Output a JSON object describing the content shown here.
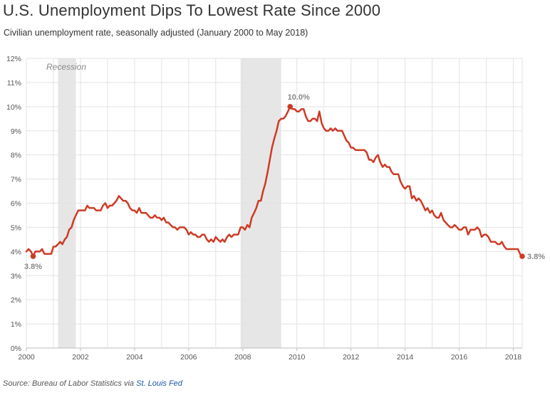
{
  "title": "U.S. Unemployment Dips To Lowest Rate Since 2000",
  "subtitle": "Civilian unemployment rate, seasonally adjusted (January 2000 to May 2018)",
  "source": {
    "prefix": "Source: Bureau of Labor Statistics via ",
    "link_text": "St. Louis Fed"
  },
  "colors": {
    "line": "#cc3b25",
    "recession": "#e6e6e6",
    "grid": "#e3e3e3",
    "axis_text": "#555555",
    "annotation": "#888888"
  },
  "chart_data": {
    "type": "line",
    "xlabel": "",
    "ylabel": "",
    "xlim": [
      2000.0,
      2018.33
    ],
    "ylim": [
      0,
      12
    ],
    "x_ticks": [
      2000,
      2002,
      2004,
      2006,
      2008,
      2010,
      2012,
      2014,
      2016,
      2018
    ],
    "x_tick_labels": [
      "2000",
      "2002",
      "2004",
      "2006",
      "2008",
      "2010",
      "2012",
      "2014",
      "2016",
      "2018"
    ],
    "y_ticks": [
      0,
      1,
      2,
      3,
      4,
      5,
      6,
      7,
      8,
      9,
      10,
      11,
      12
    ],
    "y_tick_labels": [
      "0%",
      "1%",
      "2%",
      "3%",
      "4%",
      "5%",
      "6%",
      "7%",
      "8%",
      "9%",
      "10%",
      "11%",
      "12%"
    ],
    "grid": true,
    "recessions": [
      {
        "start": 2001.17,
        "end": 2001.83
      },
      {
        "start": 2007.92,
        "end": 2009.42
      }
    ],
    "recession_label": "Recession",
    "series": [
      {
        "points": [
          [
            2000.0,
            4.0
          ],
          [
            2000.08,
            4.1
          ],
          [
            2000.17,
            4.0
          ],
          [
            2000.25,
            3.8
          ],
          [
            2000.33,
            4.0
          ],
          [
            2000.42,
            4.0
          ],
          [
            2000.5,
            4.0
          ],
          [
            2000.58,
            4.1
          ],
          [
            2000.67,
            3.9
          ],
          [
            2000.75,
            3.9
          ],
          [
            2000.83,
            3.9
          ],
          [
            2000.92,
            3.9
          ],
          [
            2001.0,
            4.2
          ],
          [
            2001.08,
            4.2
          ],
          [
            2001.17,
            4.3
          ],
          [
            2001.25,
            4.4
          ],
          [
            2001.33,
            4.3
          ],
          [
            2001.42,
            4.5
          ],
          [
            2001.5,
            4.6
          ],
          [
            2001.58,
            4.9
          ],
          [
            2001.67,
            5.0
          ],
          [
            2001.75,
            5.3
          ],
          [
            2001.83,
            5.5
          ],
          [
            2001.92,
            5.7
          ],
          [
            2002.0,
            5.7
          ],
          [
            2002.08,
            5.7
          ],
          [
            2002.17,
            5.7
          ],
          [
            2002.25,
            5.9
          ],
          [
            2002.33,
            5.8
          ],
          [
            2002.42,
            5.8
          ],
          [
            2002.5,
            5.8
          ],
          [
            2002.58,
            5.7
          ],
          [
            2002.67,
            5.7
          ],
          [
            2002.75,
            5.7
          ],
          [
            2002.83,
            5.9
          ],
          [
            2002.92,
            6.0
          ],
          [
            2003.0,
            5.8
          ],
          [
            2003.08,
            5.9
          ],
          [
            2003.17,
            5.9
          ],
          [
            2003.25,
            6.0
          ],
          [
            2003.33,
            6.1
          ],
          [
            2003.42,
            6.3
          ],
          [
            2003.5,
            6.2
          ],
          [
            2003.58,
            6.1
          ],
          [
            2003.67,
            6.1
          ],
          [
            2003.75,
            6.0
          ],
          [
            2003.83,
            5.8
          ],
          [
            2003.92,
            5.7
          ],
          [
            2004.0,
            5.7
          ],
          [
            2004.08,
            5.6
          ],
          [
            2004.17,
            5.8
          ],
          [
            2004.25,
            5.6
          ],
          [
            2004.33,
            5.6
          ],
          [
            2004.42,
            5.6
          ],
          [
            2004.5,
            5.5
          ],
          [
            2004.58,
            5.4
          ],
          [
            2004.67,
            5.4
          ],
          [
            2004.75,
            5.5
          ],
          [
            2004.83,
            5.4
          ],
          [
            2004.92,
            5.4
          ],
          [
            2005.0,
            5.3
          ],
          [
            2005.08,
            5.4
          ],
          [
            2005.17,
            5.2
          ],
          [
            2005.25,
            5.2
          ],
          [
            2005.33,
            5.1
          ],
          [
            2005.42,
            5.0
          ],
          [
            2005.5,
            5.0
          ],
          [
            2005.58,
            4.9
          ],
          [
            2005.67,
            5.0
          ],
          [
            2005.75,
            5.0
          ],
          [
            2005.83,
            5.0
          ],
          [
            2005.92,
            4.9
          ],
          [
            2006.0,
            4.7
          ],
          [
            2006.08,
            4.8
          ],
          [
            2006.17,
            4.7
          ],
          [
            2006.25,
            4.7
          ],
          [
            2006.33,
            4.6
          ],
          [
            2006.42,
            4.6
          ],
          [
            2006.5,
            4.7
          ],
          [
            2006.58,
            4.7
          ],
          [
            2006.67,
            4.5
          ],
          [
            2006.75,
            4.4
          ],
          [
            2006.83,
            4.5
          ],
          [
            2006.92,
            4.4
          ],
          [
            2007.0,
            4.6
          ],
          [
            2007.08,
            4.5
          ],
          [
            2007.17,
            4.4
          ],
          [
            2007.25,
            4.5
          ],
          [
            2007.33,
            4.4
          ],
          [
            2007.42,
            4.6
          ],
          [
            2007.5,
            4.7
          ],
          [
            2007.58,
            4.6
          ],
          [
            2007.67,
            4.7
          ],
          [
            2007.75,
            4.7
          ],
          [
            2007.83,
            4.7
          ],
          [
            2007.92,
            5.0
          ],
          [
            2008.0,
            5.0
          ],
          [
            2008.08,
            4.9
          ],
          [
            2008.17,
            5.1
          ],
          [
            2008.25,
            5.0
          ],
          [
            2008.33,
            5.4
          ],
          [
            2008.42,
            5.6
          ],
          [
            2008.5,
            5.8
          ],
          [
            2008.58,
            6.1
          ],
          [
            2008.67,
            6.1
          ],
          [
            2008.75,
            6.5
          ],
          [
            2008.83,
            6.8
          ],
          [
            2008.92,
            7.3
          ],
          [
            2009.0,
            7.8
          ],
          [
            2009.08,
            8.3
          ],
          [
            2009.17,
            8.7
          ],
          [
            2009.25,
            9.0
          ],
          [
            2009.33,
            9.4
          ],
          [
            2009.42,
            9.5
          ],
          [
            2009.5,
            9.5
          ],
          [
            2009.58,
            9.6
          ],
          [
            2009.67,
            9.8
          ],
          [
            2009.75,
            10.0
          ],
          [
            2009.83,
            9.9
          ],
          [
            2009.92,
            9.9
          ],
          [
            2010.0,
            9.8
          ],
          [
            2010.08,
            9.8
          ],
          [
            2010.17,
            9.9
          ],
          [
            2010.25,
            9.9
          ],
          [
            2010.33,
            9.6
          ],
          [
            2010.42,
            9.4
          ],
          [
            2010.5,
            9.4
          ],
          [
            2010.58,
            9.5
          ],
          [
            2010.67,
            9.5
          ],
          [
            2010.75,
            9.4
          ],
          [
            2010.83,
            9.8
          ],
          [
            2010.92,
            9.3
          ],
          [
            2011.0,
            9.1
          ],
          [
            2011.08,
            9.0
          ],
          [
            2011.17,
            9.0
          ],
          [
            2011.25,
            9.1
          ],
          [
            2011.33,
            9.0
          ],
          [
            2011.42,
            9.1
          ],
          [
            2011.5,
            9.0
          ],
          [
            2011.58,
            9.0
          ],
          [
            2011.67,
            9.0
          ],
          [
            2011.75,
            8.8
          ],
          [
            2011.83,
            8.6
          ],
          [
            2011.92,
            8.5
          ],
          [
            2012.0,
            8.3
          ],
          [
            2012.08,
            8.3
          ],
          [
            2012.17,
            8.2
          ],
          [
            2012.25,
            8.2
          ],
          [
            2012.33,
            8.2
          ],
          [
            2012.42,
            8.2
          ],
          [
            2012.5,
            8.2
          ],
          [
            2012.58,
            8.1
          ],
          [
            2012.67,
            7.8
          ],
          [
            2012.75,
            7.8
          ],
          [
            2012.83,
            7.7
          ],
          [
            2012.92,
            7.9
          ],
          [
            2013.0,
            8.0
          ],
          [
            2013.08,
            7.7
          ],
          [
            2013.17,
            7.5
          ],
          [
            2013.25,
            7.6
          ],
          [
            2013.33,
            7.5
          ],
          [
            2013.42,
            7.5
          ],
          [
            2013.5,
            7.3
          ],
          [
            2013.58,
            7.2
          ],
          [
            2013.67,
            7.2
          ],
          [
            2013.75,
            7.2
          ],
          [
            2013.83,
            6.9
          ],
          [
            2013.92,
            6.7
          ],
          [
            2014.0,
            6.6
          ],
          [
            2014.08,
            6.7
          ],
          [
            2014.17,
            6.7
          ],
          [
            2014.25,
            6.2
          ],
          [
            2014.33,
            6.3
          ],
          [
            2014.42,
            6.1
          ],
          [
            2014.5,
            6.2
          ],
          [
            2014.58,
            6.1
          ],
          [
            2014.67,
            5.9
          ],
          [
            2014.75,
            5.7
          ],
          [
            2014.83,
            5.8
          ],
          [
            2014.92,
            5.6
          ],
          [
            2015.0,
            5.7
          ],
          [
            2015.08,
            5.5
          ],
          [
            2015.17,
            5.4
          ],
          [
            2015.25,
            5.4
          ],
          [
            2015.33,
            5.6
          ],
          [
            2015.42,
            5.3
          ],
          [
            2015.5,
            5.2
          ],
          [
            2015.58,
            5.1
          ],
          [
            2015.67,
            5.0
          ],
          [
            2015.75,
            5.0
          ],
          [
            2015.83,
            5.1
          ],
          [
            2015.92,
            5.0
          ],
          [
            2016.0,
            4.9
          ],
          [
            2016.08,
            4.9
          ],
          [
            2016.17,
            5.0
          ],
          [
            2016.25,
            5.0
          ],
          [
            2016.33,
            4.7
          ],
          [
            2016.42,
            4.9
          ],
          [
            2016.5,
            4.9
          ],
          [
            2016.58,
            4.9
          ],
          [
            2016.67,
            5.0
          ],
          [
            2016.75,
            4.9
          ],
          [
            2016.83,
            4.6
          ],
          [
            2016.92,
            4.7
          ],
          [
            2017.0,
            4.7
          ],
          [
            2017.08,
            4.6
          ],
          [
            2017.17,
            4.4
          ],
          [
            2017.25,
            4.4
          ],
          [
            2017.33,
            4.4
          ],
          [
            2017.42,
            4.3
          ],
          [
            2017.5,
            4.3
          ],
          [
            2017.58,
            4.4
          ],
          [
            2017.67,
            4.2
          ],
          [
            2017.75,
            4.1
          ],
          [
            2017.83,
            4.1
          ],
          [
            2017.92,
            4.1
          ],
          [
            2018.0,
            4.1
          ],
          [
            2018.08,
            4.1
          ],
          [
            2018.17,
            4.1
          ],
          [
            2018.25,
            3.9
          ],
          [
            2018.33,
            3.8
          ]
        ]
      }
    ],
    "annotations": [
      {
        "x": 2000.25,
        "y": 3.8,
        "label": "3.8%",
        "position": "below"
      },
      {
        "x": 2009.75,
        "y": 10.0,
        "label": "10.0%",
        "position": "above"
      },
      {
        "x": 2018.33,
        "y": 3.8,
        "label": "3.8%",
        "position": "right"
      }
    ]
  }
}
